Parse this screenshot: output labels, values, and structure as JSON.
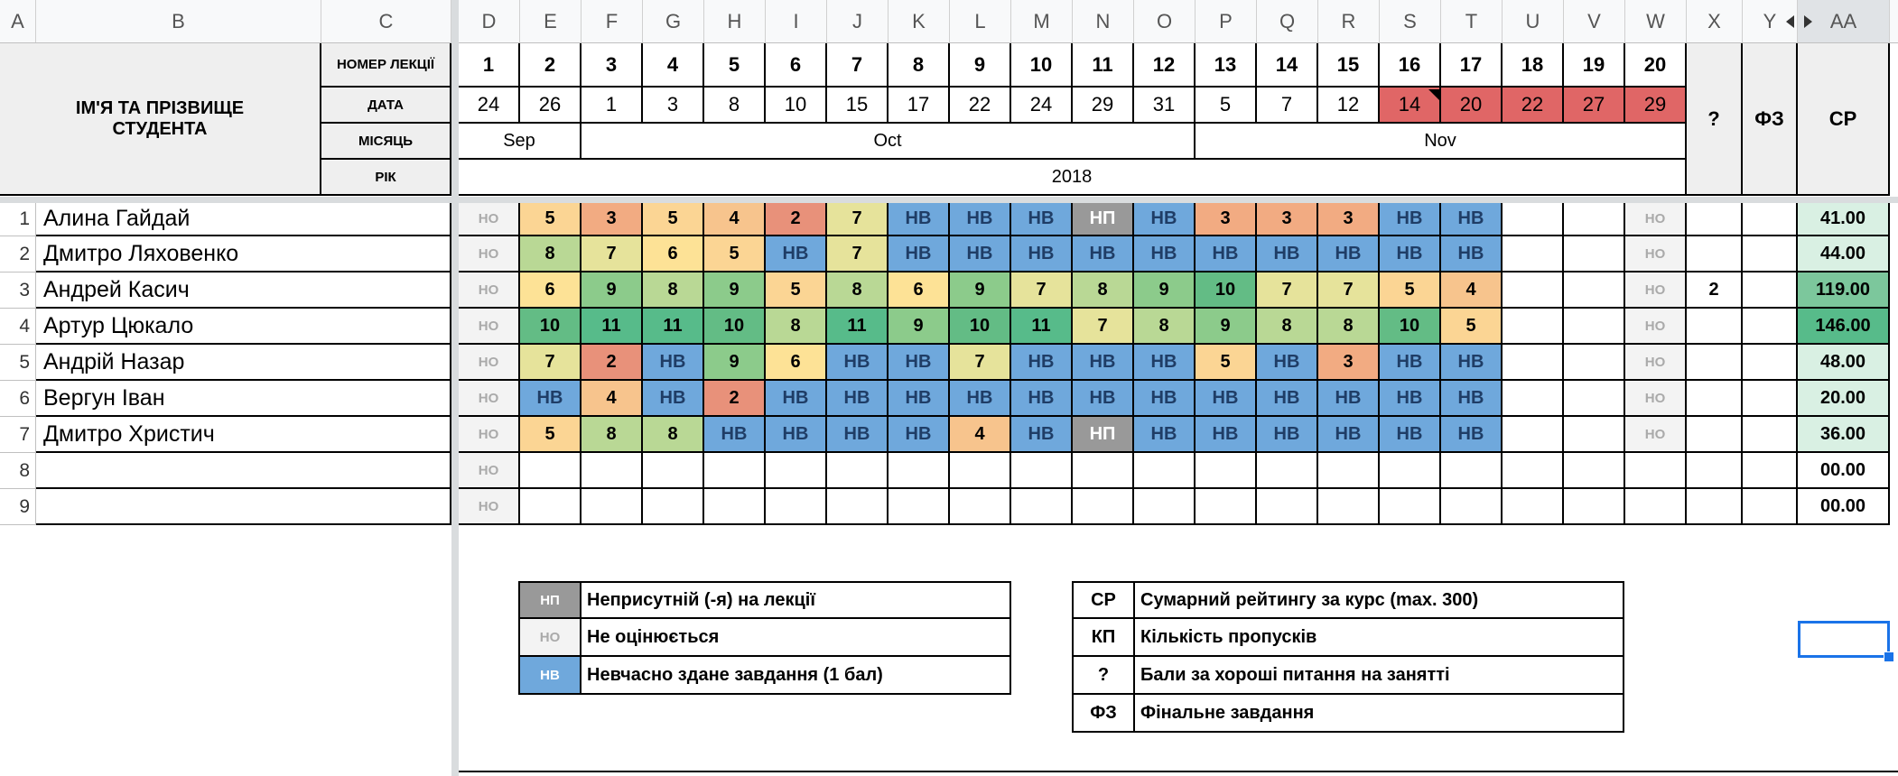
{
  "columns": [
    "A",
    "B",
    "C",
    "D",
    "E",
    "F",
    "G",
    "H",
    "I",
    "J",
    "K",
    "L",
    "M",
    "N",
    "O",
    "P",
    "Q",
    "R",
    "S",
    "T",
    "U",
    "V",
    "W",
    "X",
    "Y",
    "AA"
  ],
  "header": {
    "student_name": "ІМ'Я ТА ПРІЗВИЩЕ СТУДЕНТА",
    "lecture_number_label": "НОМЕР ЛЕКЦІЇ",
    "date_label": "ДАТА",
    "month_label": "МІСЯЦЬ",
    "year_label": "РІК",
    "question_label": "?",
    "final_label": "ФЗ",
    "total_label": "СР",
    "lecture_numbers": [
      "1",
      "2",
      "3",
      "4",
      "5",
      "6",
      "7",
      "8",
      "9",
      "10",
      "11",
      "12",
      "13",
      "14",
      "15",
      "16",
      "17",
      "18",
      "19",
      "20"
    ],
    "dates": [
      "24",
      "26",
      "1",
      "3",
      "8",
      "10",
      "15",
      "17",
      "22",
      "24",
      "29",
      "31",
      "5",
      "7",
      "12",
      "14",
      "20",
      "22",
      "27",
      "29"
    ],
    "months": [
      {
        "label": "Sep",
        "span": [
          0,
          1
        ]
      },
      {
        "label": "Oct",
        "span": [
          2,
          11
        ]
      },
      {
        "label": "Nov",
        "span": [
          12,
          19
        ]
      }
    ],
    "year": "2018"
  },
  "students": [
    {
      "num": "1",
      "name": "Алина Гайдай",
      "first": "НО",
      "grades": [
        "5",
        "3",
        "5",
        "4",
        "2",
        "7",
        "НВ",
        "НВ",
        "НВ",
        "НП",
        "НВ",
        "3",
        "3",
        "3",
        "НВ",
        "НВ",
        "",
        "",
        "НО"
      ],
      "question": "",
      "final": "",
      "total": "41.00"
    },
    {
      "num": "2",
      "name": "Дмитро Ляховенко",
      "first": "НО",
      "grades": [
        "8",
        "7",
        "6",
        "5",
        "НВ",
        "7",
        "НВ",
        "НВ",
        "НВ",
        "НВ",
        "НВ",
        "НВ",
        "НВ",
        "НВ",
        "НВ",
        "НВ",
        "",
        "",
        "НО"
      ],
      "question": "",
      "final": "",
      "total": "44.00"
    },
    {
      "num": "3",
      "name": "Андрей Касич",
      "first": "НО",
      "grades": [
        "6",
        "9",
        "8",
        "9",
        "5",
        "8",
        "6",
        "9",
        "7",
        "8",
        "9",
        "10",
        "7",
        "7",
        "5",
        "4",
        "",
        "",
        "НО"
      ],
      "question": "2",
      "final": "",
      "total": "119.00"
    },
    {
      "num": "4",
      "name": "Артур Цюкало",
      "first": "НО",
      "grades": [
        "10",
        "11",
        "11",
        "10",
        "8",
        "11",
        "9",
        "10",
        "11",
        "7",
        "8",
        "9",
        "8",
        "8",
        "10",
        "5",
        "",
        "",
        "НО"
      ],
      "question": "",
      "final": "",
      "total": "146.00"
    },
    {
      "num": "5",
      "name": "Андрій Назар",
      "first": "НО",
      "grades": [
        "7",
        "2",
        "НВ",
        "9",
        "6",
        "НВ",
        "НВ",
        "7",
        "НВ",
        "НВ",
        "НВ",
        "5",
        "НВ",
        "3",
        "НВ",
        "НВ",
        "",
        "",
        "НО"
      ],
      "question": "",
      "final": "",
      "total": "48.00"
    },
    {
      "num": "6",
      "name": "Вергун Іван",
      "first": "НО",
      "grades": [
        "НВ",
        "4",
        "НВ",
        "2",
        "НВ",
        "НВ",
        "НВ",
        "НВ",
        "НВ",
        "НВ",
        "НВ",
        "НВ",
        "НВ",
        "НВ",
        "НВ",
        "НВ",
        "",
        "",
        "НО"
      ],
      "question": "",
      "final": "",
      "total": "20.00"
    },
    {
      "num": "7",
      "name": "Дмитро Христич",
      "first": "НО",
      "grades": [
        "5",
        "8",
        "8",
        "НВ",
        "НВ",
        "НВ",
        "НВ",
        "4",
        "НВ",
        "НП",
        "НВ",
        "НВ",
        "НВ",
        "НВ",
        "НВ",
        "НВ",
        "",
        "",
        "НО"
      ],
      "question": "",
      "final": "",
      "total": "36.00"
    },
    {
      "num": "8",
      "name": "",
      "first": "НО",
      "grades": [
        "",
        "",
        "",
        "",
        "",
        "",
        "",
        "",
        "",
        "",
        "",
        "",
        "",
        "",
        "",
        "",
        "",
        "",
        ""
      ],
      "question": "",
      "final": "",
      "total": "00.00"
    },
    {
      "num": "9",
      "name": "",
      "first": "НО",
      "grades": [
        "",
        "",
        "",
        "",
        "",
        "",
        "",
        "",
        "",
        "",
        "",
        "",
        "",
        "",
        "",
        "",
        "",
        "",
        ""
      ],
      "question": "",
      "final": "",
      "total": "00.00"
    }
  ],
  "legend_left": [
    {
      "code": "НП",
      "text": "Неприсутній (-я) на лекції"
    },
    {
      "code": "НО",
      "text": "Не оцінюється"
    },
    {
      "code": "НВ",
      "text": "Невчасно здане завдання (1 бал)"
    }
  ],
  "legend_right": [
    {
      "code": "СР",
      "text": "Сумарний рейтингу за курс (max. 300)"
    },
    {
      "code": "КП",
      "text": "Кількість пропусків"
    },
    {
      "code": "?",
      "text": "Бали за хороші питання на занятті"
    },
    {
      "code": "ФЗ",
      "text": "Фінальне завдання"
    }
  ],
  "colors": {
    "header_gray": "#efefef",
    "late_blue": "#6fa8dc",
    "absent_gray": "#999999",
    "future_red": "#e06666",
    "total_green_light": "#d9f0e3",
    "total_green_dark": "#57bb8a",
    "selection": "#1a73e8"
  }
}
